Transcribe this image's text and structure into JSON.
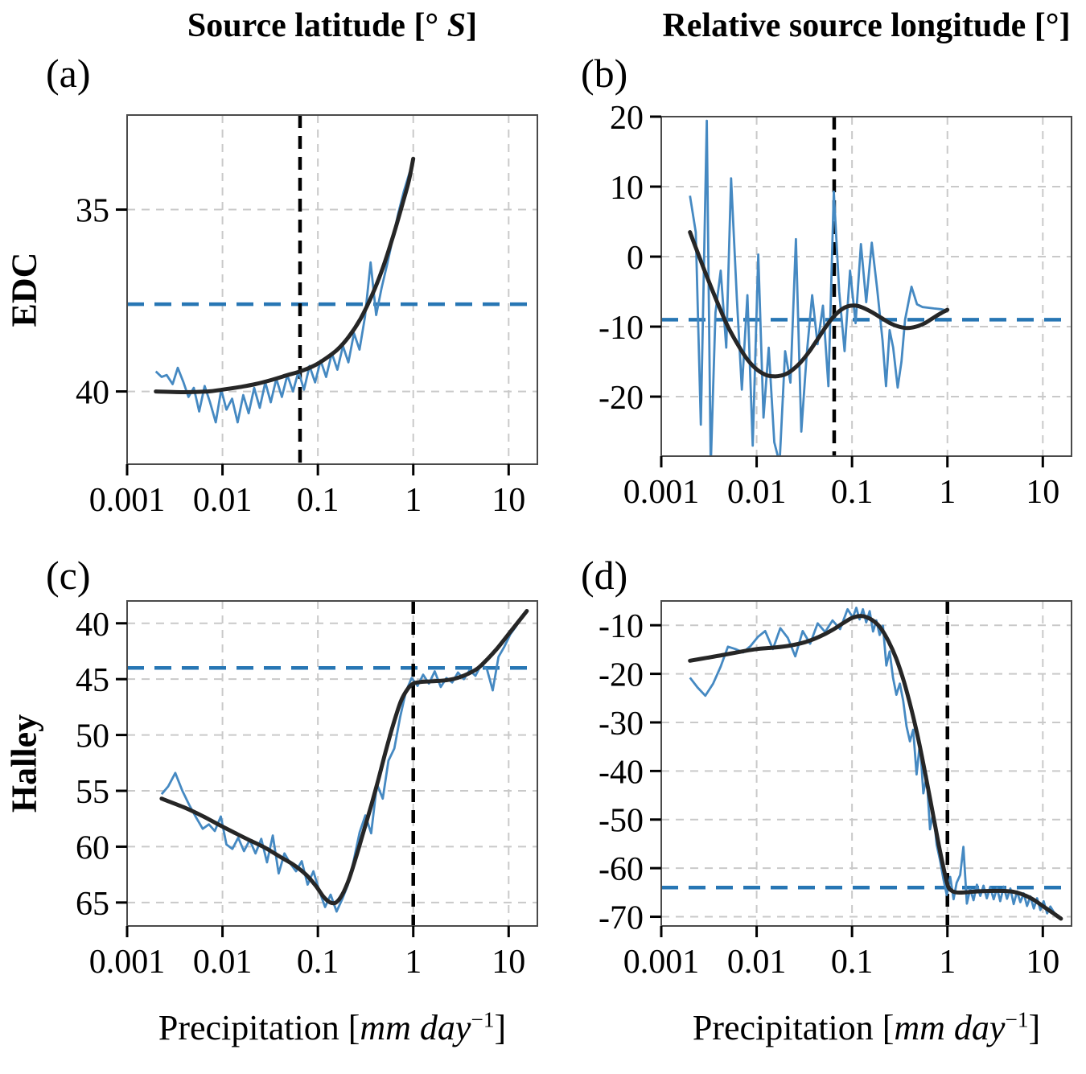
{
  "figure": {
    "col_titles": {
      "left": {
        "pre": "Source latitude [° ",
        "italic": "S",
        "post": "]"
      },
      "right": {
        "text": "Relative source longitude [°]"
      }
    },
    "row_labels": {
      "top": "EDC",
      "bottom": "Halley"
    },
    "panel_labels": {
      "a": "(a)",
      "b": "(b)",
      "c": "(c)",
      "d": "(d)"
    },
    "xaxis_label": {
      "pre": "Precipitation [",
      "italic": "mm day",
      "sup": "−1",
      "post": "]"
    },
    "colors": {
      "raw_line": "#4589c2",
      "mean_dashed": "#2776b4",
      "smooth_line": "#262626",
      "vline": "#000000",
      "grid": "#c9c9c9",
      "spine": "#4a4a4a",
      "text": "#000000"
    }
  },
  "chart_data": [
    {
      "panel": "a",
      "type": "line",
      "row_label": "EDC",
      "column_title": "Source latitude [° S]",
      "xlabel": "",
      "x_scale": "log",
      "xlim": [
        0.001,
        20
      ],
      "ylim_bottom_top": [
        42.0,
        32.4
      ],
      "y_inverted": true,
      "x_ticks": [
        0.001,
        0.01,
        0.1,
        1,
        10
      ],
      "x_tick_labels": [
        "0.001",
        "0.01",
        "0.1",
        "1",
        "10"
      ],
      "y_ticks": [
        35,
        40
      ],
      "y_tick_labels": [
        "35",
        "40"
      ],
      "hline": {
        "value": 37.6,
        "color": "#2776b4",
        "style": "dashed"
      },
      "vline": {
        "value": 0.065,
        "color": "#000000",
        "style": "dashed"
      },
      "series": [
        {
          "name": "raw-data",
          "color": "#4589c2",
          "width": 2.8,
          "smooth": false,
          "x": [
            0.002,
            0.0023,
            0.0026,
            0.003,
            0.0034,
            0.0039,
            0.0044,
            0.005,
            0.0057,
            0.0065,
            0.0074,
            0.0085,
            0.0097,
            0.011,
            0.0126,
            0.0144,
            0.0165,
            0.0188,
            0.0215,
            0.0246,
            0.0281,
            0.0321,
            0.0367,
            0.0419,
            0.0479,
            0.0548,
            0.0626,
            0.0716,
            0.0818,
            0.0935,
            0.107,
            0.122,
            0.14,
            0.16,
            0.183,
            0.209,
            0.239,
            0.273,
            0.312,
            0.357,
            0.408,
            0.466,
            0.533,
            0.609,
            0.696,
            0.796,
            0.91,
            1.0
          ],
          "y": [
            39.45,
            39.6,
            39.55,
            39.8,
            39.35,
            39.75,
            40.15,
            39.9,
            40.55,
            39.85,
            40.3,
            40.85,
            39.95,
            40.5,
            40.2,
            40.85,
            40.1,
            40.6,
            39.9,
            40.45,
            39.75,
            40.3,
            39.65,
            40.15,
            39.55,
            40.0,
            39.45,
            39.95,
            39.3,
            39.75,
            39.15,
            39.6,
            38.95,
            39.4,
            38.75,
            39.2,
            38.4,
            38.85,
            37.95,
            36.45,
            37.9,
            37.15,
            36.5,
            35.8,
            35.1,
            34.5,
            34.0,
            33.7
          ]
        },
        {
          "name": "smoothed-fit",
          "color": "#262626",
          "width": 5,
          "smooth": true,
          "x": [
            0.002,
            0.004,
            0.007,
            0.01,
            0.015,
            0.022,
            0.033,
            0.048,
            0.065,
            0.09,
            0.12,
            0.16,
            0.21,
            0.28,
            0.37,
            0.48,
            0.62,
            0.78,
            0.9,
            1.0
          ],
          "y": [
            40.0,
            40.02,
            40.0,
            39.95,
            39.88,
            39.8,
            39.68,
            39.55,
            39.45,
            39.3,
            39.1,
            38.85,
            38.5,
            38.0,
            37.35,
            36.6,
            35.7,
            34.8,
            34.2,
            33.6
          ]
        }
      ]
    },
    {
      "panel": "b",
      "type": "line",
      "row_label": "EDC",
      "column_title": "Relative source longitude [°]",
      "xlabel": "",
      "x_scale": "log",
      "xlim": [
        0.001,
        20
      ],
      "ylim_bottom_top": [
        -28.5,
        20
      ],
      "y_inverted": false,
      "x_ticks": [
        0.001,
        0.01,
        0.1,
        1,
        10
      ],
      "x_tick_labels": [
        "0.001",
        "0.01",
        "0.1",
        "1",
        "10"
      ],
      "y_ticks": [
        20,
        10,
        0,
        -10,
        -20
      ],
      "y_tick_labels": [
        "20",
        "10",
        "0",
        "-10",
        "-20"
      ],
      "hline": {
        "value": -9.0,
        "color": "#2776b4",
        "style": "dashed"
      },
      "vline": {
        "value": 0.065,
        "color": "#000000",
        "style": "dashed"
      },
      "series": [
        {
          "name": "raw-data",
          "color": "#4589c2",
          "width": 2.8,
          "smooth": false,
          "x": [
            0.002,
            0.0023,
            0.0026,
            0.003,
            0.0033,
            0.0037,
            0.0042,
            0.0048,
            0.0054,
            0.0062,
            0.007,
            0.008,
            0.0091,
            0.0104,
            0.0118,
            0.0134,
            0.0153,
            0.0174,
            0.0199,
            0.0226,
            0.0258,
            0.0294,
            0.0335,
            0.0382,
            0.0435,
            0.0496,
            0.0565,
            0.0644,
            0.0734,
            0.0836,
            0.0953,
            0.109,
            0.124,
            0.141,
            0.161,
            0.183,
            0.209,
            0.227,
            0.248,
            0.27,
            0.301,
            0.33,
            0.36,
            0.42,
            0.48,
            0.55,
            0.63,
            0.72,
            0.85,
            1.0
          ],
          "y": [
            8.7,
            3.5,
            -24.0,
            19.4,
            -30.0,
            -8.0,
            -2.0,
            -13.0,
            11.2,
            -6.0,
            -19.0,
            -5.5,
            -27.0,
            0.3,
            -23.0,
            -13.0,
            -26.5,
            -29.5,
            -13.5,
            -18.0,
            2.5,
            -25.0,
            -14.0,
            -5.5,
            -12.5,
            -7.0,
            -18.5,
            9.3,
            -5.0,
            -13.5,
            -2.0,
            -9.5,
            1.8,
            -6.5,
            2.0,
            -4.5,
            -12.0,
            -18.5,
            -10.5,
            -13.0,
            -18.7,
            -15.0,
            -9.0,
            -4.3,
            -6.8,
            -7.2,
            -7.3,
            -7.4,
            -7.5,
            -7.7
          ]
        },
        {
          "name": "smoothed-fit",
          "color": "#262626",
          "width": 5,
          "smooth": true,
          "x": [
            0.002,
            0.0025,
            0.003,
            0.004,
            0.005,
            0.0065,
            0.008,
            0.01,
            0.0125,
            0.015,
            0.018,
            0.022,
            0.028,
            0.035,
            0.043,
            0.052,
            0.062,
            0.075,
            0.09,
            0.11,
            0.13,
            0.16,
            0.2,
            0.25,
            0.31,
            0.38,
            0.47,
            0.58,
            0.7,
            0.85,
            1.0
          ],
          "y": [
            3.5,
            0.0,
            -2.8,
            -7.0,
            -10.0,
            -12.8,
            -14.7,
            -16.1,
            -16.9,
            -17.1,
            -17.0,
            -16.5,
            -15.3,
            -13.7,
            -11.9,
            -10.2,
            -8.8,
            -7.7,
            -7.1,
            -7.0,
            -7.3,
            -7.9,
            -8.7,
            -9.5,
            -10.0,
            -10.2,
            -10.0,
            -9.5,
            -8.8,
            -8.1,
            -7.6
          ]
        }
      ]
    },
    {
      "panel": "c",
      "type": "line",
      "row_label": "Halley",
      "column_title": "Source latitude [° S]",
      "xlabel": "Precipitation [mm day⁻¹]",
      "x_scale": "log",
      "xlim": [
        0.001,
        20
      ],
      "ylim_bottom_top": [
        67.1,
        38.0
      ],
      "y_inverted": true,
      "x_ticks": [
        0.001,
        0.01,
        0.1,
        1,
        10
      ],
      "x_tick_labels": [
        "0.001",
        "0.01",
        "0.1",
        "1",
        "10"
      ],
      "y_ticks": [
        40,
        45,
        50,
        55,
        60,
        65
      ],
      "y_tick_labels": [
        "40",
        "45",
        "50",
        "55",
        "60",
        "65"
      ],
      "hline": {
        "value": 44.0,
        "color": "#2776b4",
        "style": "dashed"
      },
      "vline": {
        "value": 1.0,
        "color": "#000000",
        "style": "dashed"
      },
      "series": [
        {
          "name": "raw-data",
          "color": "#4589c2",
          "width": 2.8,
          "smooth": false,
          "x": [
            0.0023,
            0.0027,
            0.0032,
            0.0038,
            0.0045,
            0.0053,
            0.0062,
            0.0072,
            0.0083,
            0.0096,
            0.011,
            0.0127,
            0.0146,
            0.0168,
            0.0193,
            0.0222,
            0.0255,
            0.0293,
            0.0337,
            0.0388,
            0.0446,
            0.0513,
            0.059,
            0.0678,
            0.078,
            0.0897,
            0.103,
            0.119,
            0.136,
            0.157,
            0.18,
            0.207,
            0.238,
            0.274,
            0.315,
            0.362,
            0.416,
            0.479,
            0.55,
            0.633,
            0.728,
            0.837,
            0.962,
            1.11,
            1.27,
            1.46,
            1.68,
            1.94,
            2.23,
            2.56,
            2.94,
            3.39,
            3.89,
            4.48,
            5.15,
            5.92,
            6.81,
            7.83,
            9.0,
            10.4,
            11.9,
            13.7,
            15.5
          ],
          "y": [
            55.3,
            54.6,
            53.4,
            55.0,
            56.3,
            57.4,
            58.4,
            58.0,
            58.6,
            57.3,
            59.8,
            60.2,
            59.2,
            60.4,
            59.4,
            60.6,
            59.3,
            61.4,
            59.0,
            62.4,
            60.6,
            61.5,
            62.2,
            61.3,
            63.4,
            62.2,
            63.9,
            65.4,
            64.3,
            65.8,
            64.7,
            63.4,
            61.2,
            58.7,
            57.2,
            58.8,
            54.4,
            55.7,
            52.3,
            51.2,
            48.4,
            46.1,
            44.9,
            45.6,
            44.6,
            45.4,
            44.3,
            45.7,
            44.9,
            45.3,
            44.4,
            45.0,
            44.2,
            44.7,
            43.7,
            44.1,
            46.0,
            43.0,
            42.1,
            41.0,
            40.3,
            39.4,
            38.9
          ]
        },
        {
          "name": "smoothed-fit",
          "color": "#262626",
          "width": 5,
          "smooth": true,
          "x": [
            0.0023,
            0.004,
            0.006,
            0.009,
            0.013,
            0.019,
            0.028,
            0.04,
            0.055,
            0.075,
            0.095,
            0.115,
            0.135,
            0.155,
            0.18,
            0.21,
            0.25,
            0.3,
            0.36,
            0.43,
            0.52,
            0.62,
            0.74,
            0.87,
            1.0,
            1.2,
            1.5,
            1.9,
            2.4,
            3.0,
            3.8,
            4.8,
            6.0,
            7.5,
            9.5,
            12.0,
            15.5
          ],
          "y": [
            55.7,
            56.5,
            57.2,
            58.0,
            58.7,
            59.4,
            60.1,
            60.9,
            61.6,
            62.5,
            63.5,
            64.5,
            65.0,
            65.0,
            64.3,
            63.0,
            61.0,
            58.7,
            56.4,
            54.0,
            51.3,
            49.0,
            47.0,
            45.9,
            45.4,
            45.25,
            45.2,
            45.15,
            45.05,
            44.85,
            44.5,
            44.0,
            43.2,
            42.3,
            41.2,
            40.1,
            38.9
          ]
        }
      ]
    },
    {
      "panel": "d",
      "type": "line",
      "row_label": "Halley",
      "column_title": "Relative source longitude [°]",
      "xlabel": "Precipitation [mm day⁻¹]",
      "x_scale": "log",
      "xlim": [
        0.001,
        20
      ],
      "ylim_bottom_top": [
        -71.9,
        -5.0
      ],
      "y_inverted": false,
      "x_ticks": [
        0.001,
        0.01,
        0.1,
        1,
        10
      ],
      "x_tick_labels": [
        "0.001",
        "0.01",
        "0.1",
        "1",
        "10"
      ],
      "y_ticks": [
        -10,
        -20,
        -30,
        -40,
        -50,
        -60,
        -70
      ],
      "y_tick_labels": [
        "-10",
        "-20",
        "-30",
        "-40",
        "-50",
        "-60",
        "-70"
      ],
      "hline": {
        "value": -64.0,
        "color": "#2776b4",
        "style": "dashed"
      },
      "vline": {
        "value": 1.0,
        "color": "#000000",
        "style": "dashed"
      },
      "series": [
        {
          "name": "raw-data",
          "color": "#4589c2",
          "width": 2.8,
          "smooth": false,
          "x": [
            0.002,
            0.0024,
            0.0029,
            0.0035,
            0.0042,
            0.005,
            0.006,
            0.0072,
            0.0086,
            0.0103,
            0.0123,
            0.0148,
            0.0177,
            0.0212,
            0.0254,
            0.0304,
            0.0364,
            0.0436,
            0.0522,
            0.0625,
            0.0749,
            0.0897,
            0.102,
            0.111,
            0.12,
            0.13,
            0.141,
            0.153,
            0.166,
            0.18,
            0.195,
            0.211,
            0.229,
            0.248,
            0.269,
            0.292,
            0.317,
            0.344,
            0.373,
            0.404,
            0.438,
            0.475,
            0.515,
            0.559,
            0.606,
            0.657,
            0.712,
            0.772,
            0.837,
            0.908,
            0.984,
            1.07,
            1.16,
            1.25,
            1.36,
            1.47,
            1.6,
            1.73,
            1.88,
            2.04,
            2.21,
            2.39,
            2.59,
            2.81,
            3.05,
            3.31,
            3.58,
            3.89,
            4.21,
            4.57,
            4.95,
            5.37,
            5.82,
            6.31,
            6.84,
            7.41,
            8.04,
            8.71,
            9.44,
            10.2,
            11.1,
            12.0,
            13.0,
            14.1,
            15.3
          ],
          "y": [
            -20.8,
            -22.8,
            -24.5,
            -22.0,
            -18.5,
            -14.4,
            -14.9,
            -15.6,
            -14.3,
            -12.4,
            -11.2,
            -14.9,
            -10.6,
            -12.6,
            -16.4,
            -11.2,
            -13.8,
            -9.6,
            -11.4,
            -9.0,
            -10.8,
            -6.7,
            -8.4,
            -6.4,
            -8.8,
            -6.7,
            -9.4,
            -7.1,
            -11.3,
            -9.0,
            -12.0,
            -10.1,
            -18.3,
            -15.4,
            -20.8,
            -24.3,
            -22.0,
            -25.6,
            -30.8,
            -33.9,
            -31.5,
            -40.7,
            -34.2,
            -44.6,
            -41.0,
            -52.0,
            -48.3,
            -55.2,
            -58.4,
            -62.3,
            -65.5,
            -61.8,
            -66.4,
            -63.0,
            -61.4,
            -55.6,
            -67.3,
            -64.3,
            -66.6,
            -63.4,
            -65.7,
            -63.6,
            -66.2,
            -63.9,
            -66.4,
            -64.1,
            -66.8,
            -63.8,
            -66.3,
            -64.2,
            -67.4,
            -64.8,
            -67.0,
            -65.2,
            -67.8,
            -65.8,
            -68.3,
            -66.2,
            -68.6,
            -66.8,
            -69.3,
            -67.9,
            -69.0,
            -69.8,
            -70.4
          ]
        },
        {
          "name": "smoothed-fit",
          "color": "#262626",
          "width": 5,
          "smooth": true,
          "x": [
            0.002,
            0.003,
            0.0045,
            0.007,
            0.01,
            0.015,
            0.022,
            0.032,
            0.045,
            0.062,
            0.08,
            0.1,
            0.12,
            0.14,
            0.17,
            0.2,
            0.24,
            0.29,
            0.35,
            0.42,
            0.5,
            0.6,
            0.72,
            0.85,
            1.0,
            1.1,
            1.25,
            1.5,
            2.0,
            2.8,
            3.8,
            5.0,
            6.5,
            8.0,
            10.0,
            12.5,
            15.5
          ],
          "y": [
            -17.3,
            -16.7,
            -16.1,
            -15.4,
            -14.9,
            -14.6,
            -14.2,
            -13.5,
            -12.4,
            -11.0,
            -9.6,
            -8.5,
            -8.1,
            -8.3,
            -9.2,
            -10.6,
            -13.2,
            -16.8,
            -21.6,
            -27.4,
            -33.8,
            -41.6,
            -49.8,
            -57.2,
            -63.3,
            -64.6,
            -65.0,
            -65.0,
            -64.8,
            -64.7,
            -64.7,
            -64.9,
            -65.6,
            -66.5,
            -67.8,
            -69.1,
            -70.4
          ]
        }
      ]
    }
  ]
}
